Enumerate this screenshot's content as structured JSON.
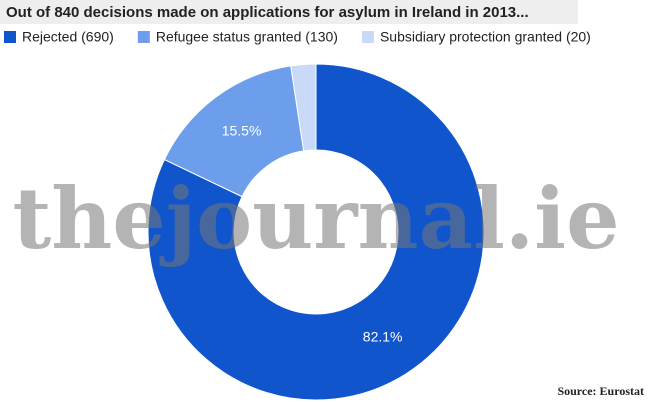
{
  "chart_data": {
    "type": "pie",
    "title": "Out of 840 decisions made on applications for asylum in Ireland in 2013...",
    "categories": [
      "Rejected (690)",
      "Refugee status granted (130)",
      "Subsidiary protection granted (20)"
    ],
    "values": [
      82.1,
      15.5,
      2.4
    ],
    "value_labels": [
      "82.1%",
      "15.5%",
      null
    ],
    "colors": [
      "#1155cc",
      "#6d9eeb",
      "#c9daf8"
    ],
    "watermark": "thejournal.ie",
    "source": "Source: Eurostat"
  }
}
